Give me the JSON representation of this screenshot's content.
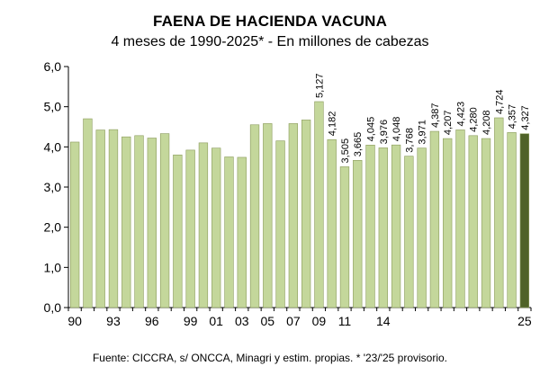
{
  "chart_data": {
    "type": "bar",
    "title": "FAENA DE HACIENDA VACUNA",
    "subtitle": "4 meses de 1990-2025* - En millones de cabezas",
    "source": "Fuente: CICCRA, s/ ONCCA, Minagri y estim. propias. * '23/'25 provisorio.",
    "categories": [
      "1990",
      "1991",
      "1992",
      "1993",
      "1994",
      "1995",
      "1996",
      "1997",
      "1998",
      "1999",
      "2000",
      "2001",
      "2002",
      "2003",
      "2004",
      "2005",
      "2006",
      "2007",
      "2008",
      "2009",
      "2010",
      "2011",
      "2012",
      "2013",
      "2014",
      "2015",
      "2016",
      "2017",
      "2018",
      "2019",
      "2020",
      "2021",
      "2022",
      "2023",
      "2024",
      "2025"
    ],
    "x_tick_labels": [
      "90",
      "",
      "",
      "93",
      "",
      "",
      "96",
      "",
      "",
      "99",
      "",
      "01",
      "",
      "03",
      "",
      "05",
      "",
      "07",
      "",
      "09",
      "",
      "11",
      "",
      "",
      "14",
      "",
      "",
      "",
      "",
      "",
      "",
      "",
      "",
      "",
      "",
      "25"
    ],
    "values": [
      4.12,
      4.7,
      4.42,
      4.43,
      4.25,
      4.28,
      4.22,
      4.33,
      3.8,
      3.92,
      4.1,
      3.97,
      3.75,
      3.74,
      4.55,
      4.58,
      4.15,
      4.58,
      4.67,
      5.127,
      4.182,
      3.505,
      3.665,
      4.045,
      3.976,
      4.048,
      3.768,
      3.971,
      4.387,
      4.207,
      4.423,
      4.28,
      4.208,
      4.724,
      4.357,
      4.327
    ],
    "data_labels": [
      "",
      "",
      "",
      "",
      "",
      "",
      "",
      "",
      "",
      "",
      "",
      "",
      "",
      "",
      "",
      "",
      "",
      "",
      "",
      "5,127",
      "4,182",
      "3,505",
      "3,665",
      "4,045",
      "3,976",
      "4,048",
      "3,768",
      "3,971",
      "4,387",
      "4,207",
      "4,423",
      "4,280",
      "4,208",
      "4,724",
      "4,357",
      "4,327"
    ],
    "y_ticks": [
      "0,0",
      "1,0",
      "2,0",
      "3,0",
      "4,0",
      "5,0",
      "6,0"
    ],
    "ylim": [
      0,
      6
    ],
    "grid": false,
    "colors": {
      "bar": "#c4d79b",
      "bar_highlight": "#4f6228",
      "bar_stroke": "#8a9a5b"
    }
  }
}
